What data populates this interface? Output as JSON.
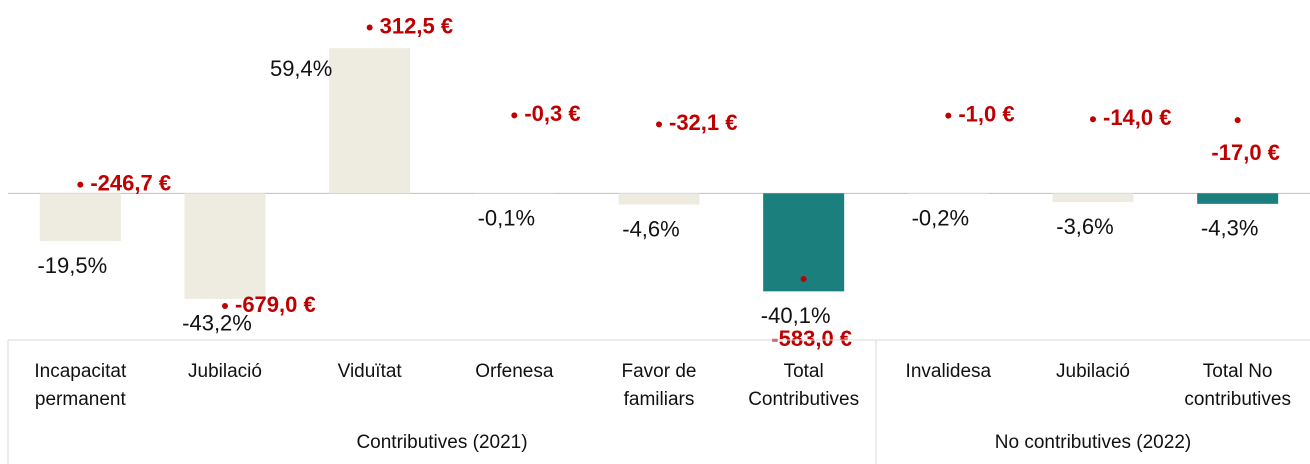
{
  "chart_data": {
    "type": "bar",
    "categories": [
      "Incapacitat\npermanent",
      "Jubilació",
      "Viduïtat",
      "Orfenesa",
      "Favor de\nfamiliars",
      "Total\nContributives",
      "Invalidesa",
      "Jubilació",
      "Total No\ncontributives"
    ],
    "groups": [
      {
        "label": "Contributives (2021)",
        "span": 6
      },
      {
        "label": "No contributives (2022)",
        "span": 3
      }
    ],
    "series": [
      {
        "values": [
          -19.5,
          -43.2,
          59.4,
          -0.1,
          -4.6,
          -40.1,
          -0.2,
          -3.6,
          -4.3
        ],
        "value_labels": [
          "-19,5%",
          "-43,2%",
          "59,4%",
          "-0,1%",
          "-4,6%",
          "-40,1%",
          "-0,2%",
          "-3,6%",
          "-4,3%"
        ],
        "colors": [
          "#eeece1",
          "#eeece1",
          "#eeece1",
          "#eeece1",
          "#eeece1",
          "#1b7f7d",
          "#eeece1",
          "#eeece1",
          "#1b7f7d"
        ]
      },
      {
        "values": [
          -246.7,
          -679.0,
          312.5,
          -0.3,
          -32.1,
          -583.0,
          -1.0,
          -14.0,
          -17.0
        ],
        "value_labels": [
          "-246,7 €",
          "-679,0 €",
          "312,5 €",
          "-0,3 €",
          "-32,1 €",
          "-583,0 €",
          "-1,0 €",
          "-14,0 €",
          "-17,0 €"
        ],
        "color": "#c00000",
        "axis": "y2"
      }
    ],
    "ylim": [
      -60,
      75
    ],
    "y2lim": [
      -800,
      375
    ]
  }
}
